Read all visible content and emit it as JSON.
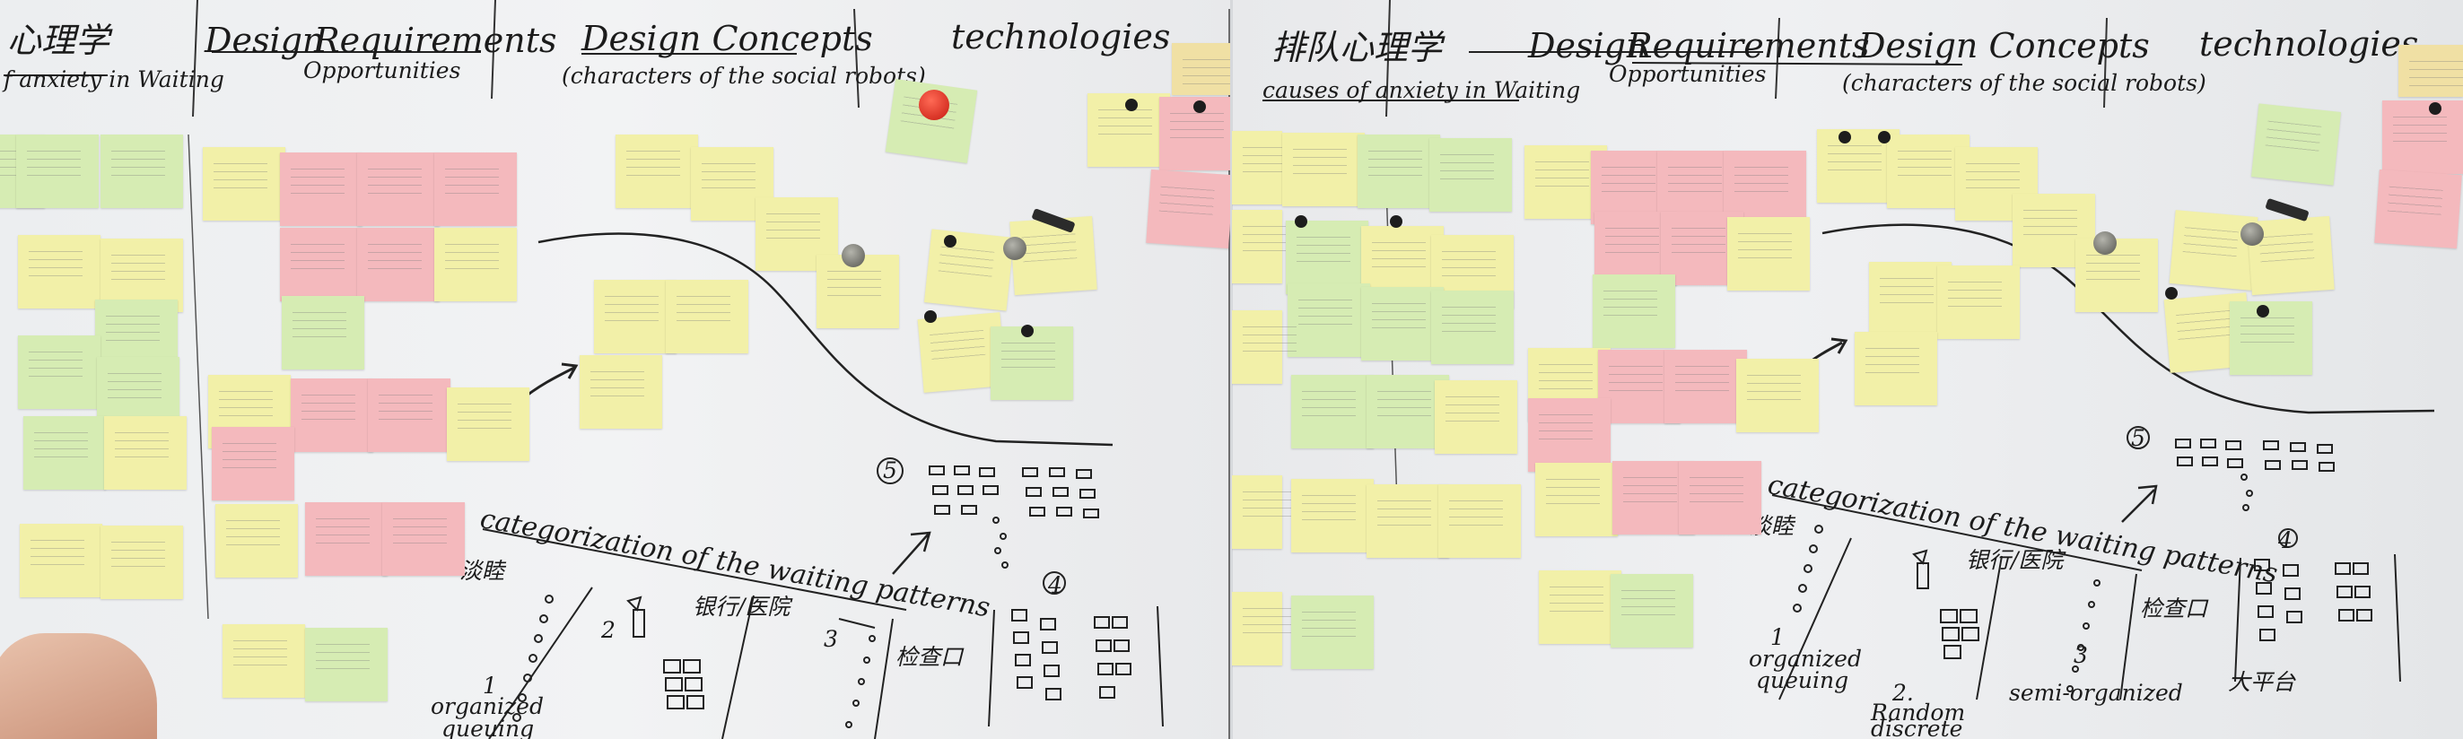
{
  "left": {
    "heading_anxiety": "心理学",
    "sub_anxiety": "f anxiety in Waiting",
    "design_prefix": "Design",
    "requirements": "Requirements",
    "opportunities": "Opportunities",
    "design_concepts": "Design Concepts",
    "characters": "(characters of the social robots)",
    "technologies": "technologies",
    "categorization": "categorization of the waiting patterns",
    "pattern_1": "1",
    "pattern_label_1": "organized",
    "pattern_label_1b": "queuing",
    "cn_1": "淡睦",
    "cn_2": "银行/医院",
    "cn_3": "检查口",
    "num_2": "2",
    "num_3": "3",
    "num_4": "4",
    "num_5": "5"
  },
  "right": {
    "heading_anxiety": "排队心理学",
    "sub_anxiety": "causes of anxiety in Waiting",
    "design_prefix": "Design",
    "requirements": "Requirements",
    "opportunities": "Opportunities",
    "design_concepts": "Design Concepts",
    "characters": "(characters of the social robots)",
    "technologies": "technologies",
    "categorization": "categorization of the waiting patterns",
    "pattern_1": "1",
    "pattern_label_1": "organized",
    "pattern_label_1b": "queuing",
    "pattern_2": "2.",
    "pattern_label_2": "Random",
    "pattern_label_2b": "discrete",
    "pattern_3": "3",
    "pattern_label_3": "semi-organized",
    "cn_1": "淡睦",
    "cn_2": "银行/医院",
    "cn_3": "检查口",
    "cn_4": "大平台",
    "num_4": "4",
    "num_5": "5"
  }
}
